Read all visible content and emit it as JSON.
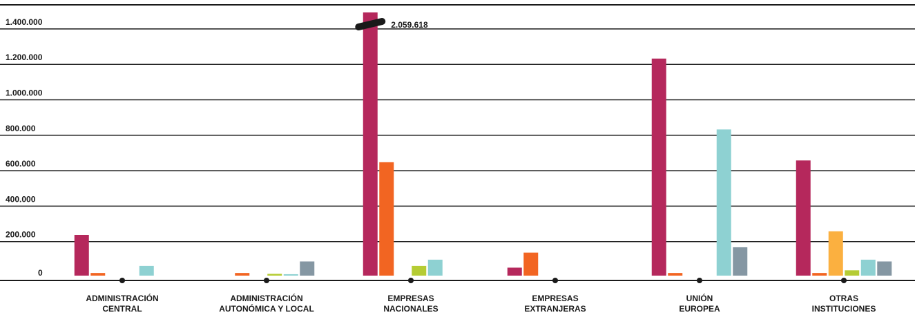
{
  "chart_data": {
    "type": "bar",
    "categories": [
      [
        "ADMINISTRACIÓN",
        "CENTRAL"
      ],
      [
        "ADMINISTRACIÓN",
        "AUTONÓMICA Y LOCAL"
      ],
      [
        "EMPRESAS",
        "NACIONALES"
      ],
      [
        "EMPRESAS",
        "EXTRANJERAS"
      ],
      [
        "UNIÓN",
        "EUROPEA"
      ],
      [
        "OTRAS",
        "INSTITUCIONES"
      ]
    ],
    "series": [
      {
        "color": "#b5285c",
        "values": [
          230000,
          0,
          2059618,
          45000,
          1225000,
          650000
        ]
      },
      {
        "color": "#f26522",
        "values": [
          15000,
          15000,
          640000,
          130000,
          15000,
          15000
        ]
      },
      {
        "color": "#fbb040",
        "values": [
          0,
          0,
          0,
          0,
          0,
          250000
        ]
      },
      {
        "color": "#b5cc34",
        "values": [
          0,
          10000,
          55000,
          0,
          0,
          30000
        ]
      },
      {
        "color": "#8ed1d2",
        "values": [
          55000,
          8000,
          90000,
          0,
          825000,
          90000
        ]
      },
      {
        "color": "#8597a3",
        "values": [
          0,
          80000,
          0,
          0,
          160000,
          80000
        ]
      }
    ],
    "yticks": [
      0,
      200000,
      400000,
      600000,
      800000,
      1000000,
      1200000,
      1400000
    ],
    "ytick_labels": [
      "0",
      "200.000",
      "400.000",
      "600.000",
      "800.000",
      "1.000.000",
      "1.200.000",
      "1.400.000"
    ],
    "ylim": [
      0,
      1500000
    ],
    "axis_break": {
      "category_index": 2,
      "series_index": 0,
      "label": "2.059.618"
    },
    "grid": true,
    "title": "",
    "xlabel": "",
    "ylabel": ""
  }
}
